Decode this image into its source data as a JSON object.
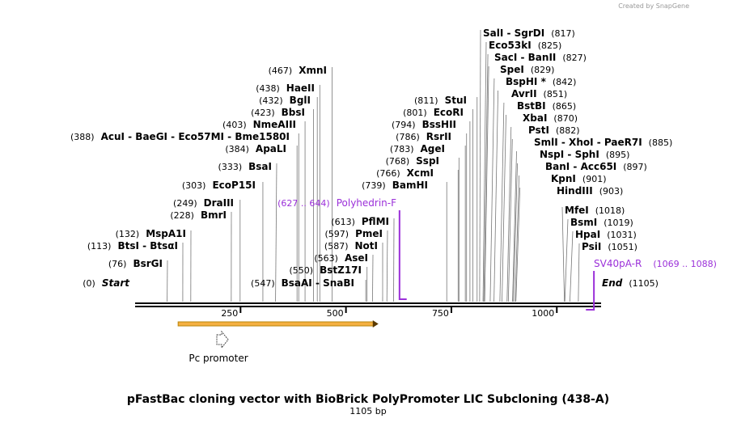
{
  "credit": "Created by SnapGene",
  "map": {
    "title": "pFastBac cloning vector with BioBrick PolyPromoter LIC Subcloning (438-A)",
    "subtitle": "1105 bp",
    "length": 1105,
    "ticks": [
      250,
      500,
      750,
      1000
    ],
    "start": {
      "name": "Start",
      "position": 0,
      "label": "(0)"
    },
    "end": {
      "name": "End",
      "position": 1105,
      "label": "(1105)"
    },
    "sites": [
      {
        "name": "BsrGI",
        "position": 76,
        "label": "(76)"
      },
      {
        "name": "BtsI - BtsαI",
        "position": 113,
        "label": "(113)"
      },
      {
        "name": "MspA1I",
        "position": 132,
        "label": "(132)"
      },
      {
        "name": "BmrI",
        "position": 228,
        "label": "(228)"
      },
      {
        "name": "DraIII",
        "position": 249,
        "label": "(249)"
      },
      {
        "name": "EcoP15I",
        "position": 303,
        "label": "(303)"
      },
      {
        "name": "BsaI",
        "position": 333,
        "label": "(333)"
      },
      {
        "name": "ApaLI",
        "position": 384,
        "label": "(384)"
      },
      {
        "name": "AcuI - BaeGI - Eco57MI - Bme1580I",
        "position": 388,
        "label": "(388)"
      },
      {
        "name": "NmeAIII",
        "position": 403,
        "label": "(403)"
      },
      {
        "name": "BbsI",
        "position": 423,
        "label": "(423)"
      },
      {
        "name": "BglI",
        "position": 432,
        "label": "(432)"
      },
      {
        "name": "HaeII",
        "position": 438,
        "label": "(438)"
      },
      {
        "name": "XmnI",
        "position": 467,
        "label": "(467)"
      },
      {
        "name": "BsaAI - SnaBI",
        "position": 547,
        "label": "(547)"
      },
      {
        "name": "BstZ17I",
        "position": 550,
        "label": "(550)"
      },
      {
        "name": "AseI",
        "position": 563,
        "label": "(563)"
      },
      {
        "name": "NotI",
        "position": 587,
        "label": "(587)"
      },
      {
        "name": "PmeI",
        "position": 597,
        "label": "(597)"
      },
      {
        "name": "PflMI",
        "position": 613,
        "label": "(613)"
      },
      {
        "name": "BamHI",
        "position": 739,
        "label": "(739)"
      },
      {
        "name": "XcmI",
        "position": 766,
        "label": "(766)"
      },
      {
        "name": "SspI",
        "position": 768,
        "label": "(768)"
      },
      {
        "name": "AgeI",
        "position": 783,
        "label": "(783)"
      },
      {
        "name": "RsrII",
        "position": 786,
        "label": "(786)"
      },
      {
        "name": "BssHII",
        "position": 794,
        "label": "(794)"
      },
      {
        "name": "EcoRI",
        "position": 801,
        "label": "(801)"
      },
      {
        "name": "StuI",
        "position": 811,
        "label": "(811)"
      },
      {
        "name": "SalI - SgrDI",
        "position": 817,
        "label": "(817)"
      },
      {
        "name": "Eco53kI",
        "position": 825,
        "label": "(825)"
      },
      {
        "name": "SacI - BanII",
        "position": 827,
        "label": "(827)"
      },
      {
        "name": "SpeI",
        "position": 829,
        "label": "(829)"
      },
      {
        "name": "BspHI *",
        "position": 842,
        "label": "(842)"
      },
      {
        "name": "AvrII",
        "position": 851,
        "label": "(851)"
      },
      {
        "name": "BstBI",
        "position": 865,
        "label": "(865)"
      },
      {
        "name": "XbaI",
        "position": 870,
        "label": "(870)"
      },
      {
        "name": "PstI",
        "position": 882,
        "label": "(882)"
      },
      {
        "name": "SmlI - XhoI - PaeR7I",
        "position": 885,
        "label": "(885)"
      },
      {
        "name": "NspI - SphI",
        "position": 895,
        "label": "(895)"
      },
      {
        "name": "BanI - Acc65I",
        "position": 897,
        "label": "(897)"
      },
      {
        "name": "KpnI",
        "position": 901,
        "label": "(901)"
      },
      {
        "name": "HindIII",
        "position": 903,
        "label": "(903)"
      },
      {
        "name": "MfeI",
        "position": 1018,
        "label": "(1018)"
      },
      {
        "name": "BsmI",
        "position": 1019,
        "label": "(1019)"
      },
      {
        "name": "HpaI",
        "position": 1031,
        "label": "(1031)"
      },
      {
        "name": "PsiI",
        "position": 1051,
        "label": "(1051)"
      }
    ],
    "primers": [
      {
        "name": "Polyhedrin-F",
        "start": 627,
        "end": 644,
        "label": "(627 .. 644)"
      },
      {
        "name": "SV40pA-R",
        "start": 1069,
        "end": 1088,
        "label": "(1069 .. 1088)"
      }
    ],
    "features": [
      {
        "name": "Pc promoter",
        "start": 102,
        "end": 577
      }
    ]
  }
}
